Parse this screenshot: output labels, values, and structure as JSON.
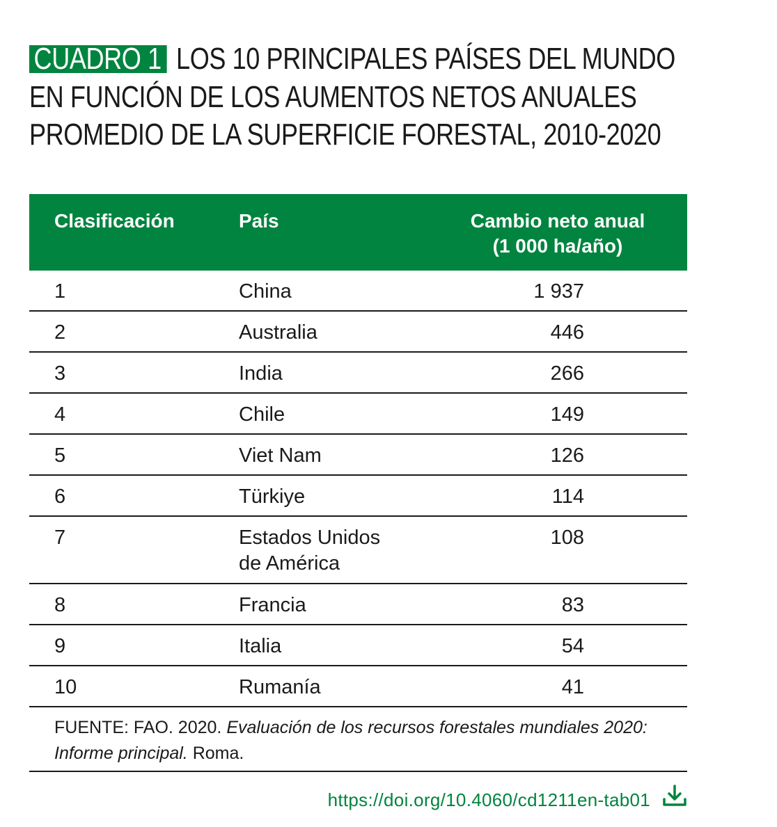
{
  "title": {
    "badge": "CUADRO 1",
    "text": "LOS 10 PRINCIPALES PAÍSES DEL MUNDO EN FUNCIÓN DE LOS AUMENTOS NETOS ANUALES PROMEDIO DE LA SUPERFICIE FORESTAL, 2010-2020"
  },
  "table": {
    "headers": {
      "rank": "Clasificación",
      "country": "País",
      "value_line1": "Cambio neto anual",
      "value_line2": "(1 000 ha/año)"
    },
    "rows": [
      {
        "rank": "1",
        "country": "China",
        "value": "1 937"
      },
      {
        "rank": "2",
        "country": "Australia",
        "value": "446"
      },
      {
        "rank": "3",
        "country": "India",
        "value": "266"
      },
      {
        "rank": "4",
        "country": "Chile",
        "value": "149"
      },
      {
        "rank": "5",
        "country": "Viet Nam",
        "value": "126"
      },
      {
        "rank": "6",
        "country": "Türkiye",
        "value": "114"
      },
      {
        "rank": "7",
        "country": "Estados Unidos de América",
        "value": "108"
      },
      {
        "rank": "8",
        "country": "Francia",
        "value": "83"
      },
      {
        "rank": "9",
        "country": "Italia",
        "value": "54"
      },
      {
        "rank": "10",
        "country": "Rumanía",
        "value": "41"
      }
    ]
  },
  "source": {
    "prefix": "FUENTE: FAO. 2020. ",
    "title_italic": "Evaluación de los recursos forestales mundiales 2020: Informe principal.",
    "suffix": " Roma."
  },
  "doi": "https://doi.org/10.4060/cd1211en-tab01",
  "colors": {
    "accent": "#00843f",
    "text": "#1a1a1a"
  },
  "icons": {
    "download": "download-icon"
  }
}
